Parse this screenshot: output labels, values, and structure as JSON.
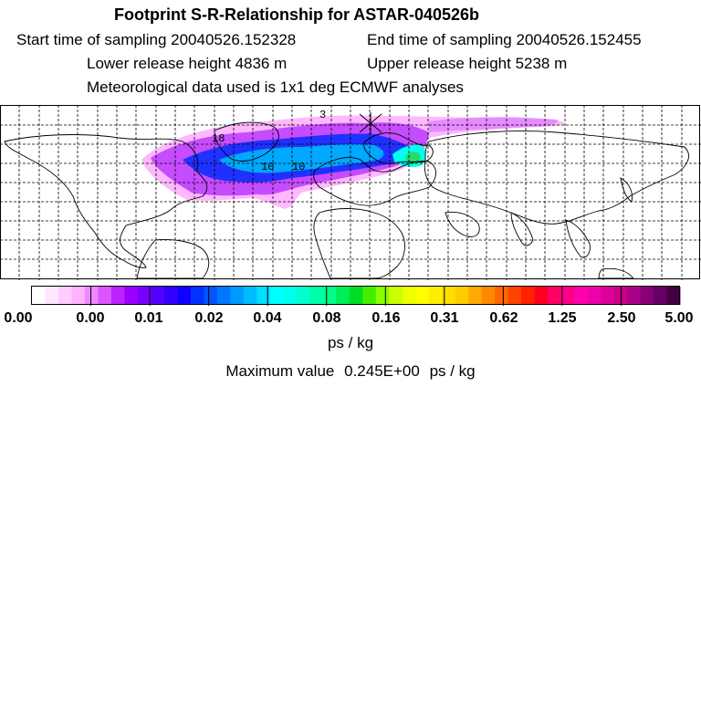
{
  "header": {
    "title": "Footprint S-R-Relationship for ASTAR-040526b",
    "start_label": "Start time of sampling",
    "start_value": "20040526.152328",
    "end_label": "End time of sampling",
    "end_value": "20040526.152455",
    "lower_label": "Lower release height",
    "lower_value": "4836 m",
    "upper_label": "Upper release height",
    "upper_value": "5238 m",
    "met_text": "Meteorological data used is 1x1 deg ECMWF analyses"
  },
  "map": {
    "contour_labels": [
      "18",
      "10",
      "10",
      "3"
    ],
    "colors": [
      "#ffffff",
      "#ffe0ff",
      "#ffbfff",
      "#ff9fff",
      "#e080ff",
      "#c040ff",
      "#9000ff",
      "#5000ff",
      "#0000ff",
      "#0060ff",
      "#00a0ff",
      "#00ffff",
      "#00e0a0",
      "#00ff40",
      "#80ff00",
      "#ffff00",
      "#ffc000",
      "#ff6000",
      "#ff0000",
      "#ff0080",
      "#c000a0",
      "#600060"
    ]
  },
  "colorbar": {
    "tick_labels": [
      "0.00",
      "0.00",
      "0.01",
      "0.02",
      "0.04",
      "0.08",
      "0.16",
      "0.31",
      "0.62",
      "1.25",
      "2.50",
      "5.00"
    ],
    "colors": [
      "#ffffff",
      "#ffe6ff",
      "#ffccff",
      "#ffb3ff",
      "#ee88ff",
      "#dd55ff",
      "#bb22ff",
      "#9900ff",
      "#7700ff",
      "#5500ff",
      "#3300ff",
      "#1100ff",
      "#0033ff",
      "#0055ff",
      "#0077ff",
      "#0099ff",
      "#00bbff",
      "#00ddff",
      "#00ffff",
      "#00ffee",
      "#00ffcc",
      "#00ffaa",
      "#00ff88",
      "#00ee55",
      "#00dd22",
      "#44ee00",
      "#88ff00",
      "#ccff00",
      "#eeff00",
      "#ffff00",
      "#ffee00",
      "#ffdd00",
      "#ffcc00",
      "#ffaa00",
      "#ff8800",
      "#ff6600",
      "#ff4400",
      "#ff2200",
      "#ff0022",
      "#ff0066",
      "#ff0088",
      "#ff00aa",
      "#ee00aa",
      "#dd0099",
      "#cc0088",
      "#aa0088",
      "#880077",
      "#660066",
      "#440044"
    ],
    "units": "ps / kg"
  },
  "footer": {
    "max_label": "Maximum value",
    "max_value": "0.245E+00",
    "max_units": "ps / kg"
  }
}
